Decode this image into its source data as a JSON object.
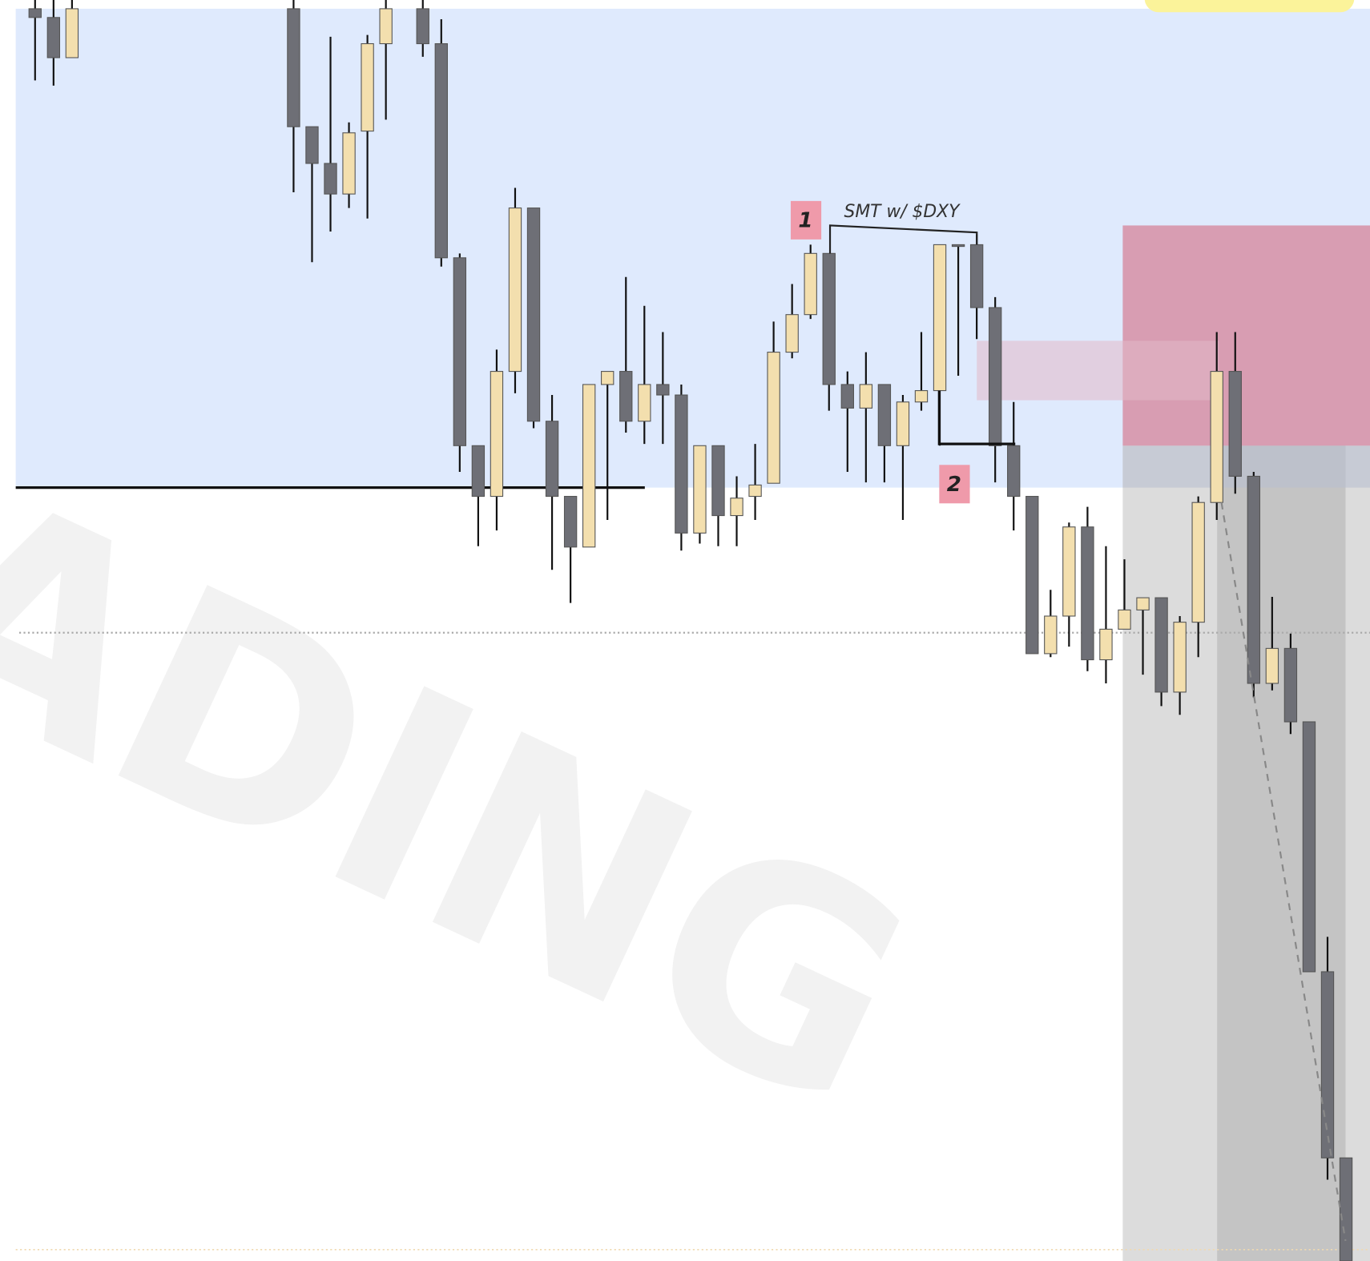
{
  "chart_data": {
    "type": "candlestick",
    "watermark": "ADING",
    "annotations": [
      "1",
      "2",
      "SMT w/ $DXY"
    ],
    "up_color": "#f3dfae",
    "down_color": "#6e6f76",
    "xlim": [
      -1.9,
      72.3
    ],
    "ylim": [
      0,
      1443
    ],
    "x": [
      0,
      1,
      2,
      14,
      15,
      16,
      17,
      18,
      19,
      21,
      22,
      23,
      24,
      25,
      26,
      27,
      28,
      29,
      30,
      31,
      32,
      33,
      34,
      35,
      36,
      37,
      38,
      39,
      40,
      41,
      42,
      43,
      44,
      45,
      46,
      47,
      48,
      49,
      50,
      51,
      52,
      53,
      54,
      55,
      56,
      57,
      58,
      59,
      60,
      61,
      62,
      63,
      64,
      65,
      66,
      67,
      68,
      69,
      70,
      71
    ],
    "open": [
      1433,
      1423,
      1377,
      1433,
      1298,
      1256,
      1221,
      1293,
      1393,
      1433,
      1393,
      1148,
      933,
      875,
      1018,
      1205,
      961,
      875,
      817,
      1003,
      1018,
      961,
      1003,
      991,
      833,
      933,
      853,
      875,
      890,
      1040,
      1083,
      1153,
      1003,
      976,
      1003,
      933,
      983,
      996,
      1163,
      1163,
      1091,
      933,
      875,
      695,
      738,
      840,
      688,
      723,
      745,
      759,
      651,
      731,
      868,
      1018,
      898,
      661,
      701,
      617,
      331,
      118
    ],
    "high": [
      1443,
      1443,
      1443,
      1443,
      1298,
      1401,
      1303,
      1403,
      1443,
      1443,
      1421,
      1153,
      933,
      1043,
      1228,
      1205,
      991,
      875,
      1003,
      1018,
      1126,
      1093,
      1063,
      1003,
      933,
      933,
      898,
      935,
      1075,
      1118,
      1163,
      1153,
      1018,
      1040,
      1003,
      991,
      1063,
      1163,
      1163,
      1175,
      1103,
      983,
      875,
      768,
      845,
      863,
      818,
      803,
      759,
      759,
      738,
      875,
      1063,
      1063,
      903,
      760,
      718,
      617,
      371,
      118
    ],
    "low": [
      1351,
      1345,
      1377,
      1223,
      1143,
      1178,
      1205,
      1193,
      1306,
      1378,
      1138,
      903,
      818,
      836,
      993,
      953,
      791,
      753,
      817,
      848,
      948,
      935,
      935,
      813,
      821,
      818,
      818,
      848,
      890,
      1033,
      1078,
      973,
      903,
      891,
      891,
      848,
      973,
      933,
      1013,
      1055,
      891,
      836,
      695,
      691,
      703,
      675,
      661,
      723,
      671,
      635,
      625,
      691,
      848,
      878,
      645,
      653,
      603,
      331,
      93,
      0
    ],
    "close": [
      1423,
      1377,
      1433,
      1298,
      1256,
      1221,
      1291,
      1393,
      1433,
      1393,
      1148,
      933,
      875,
      1018,
      1205,
      961,
      875,
      817,
      1003,
      1018,
      961,
      1003,
      991,
      833,
      933,
      853,
      873,
      888,
      1040,
      1083,
      1153,
      1003,
      976,
      1003,
      933,
      983,
      996,
      1163,
      1161,
      1091,
      933,
      875,
      695,
      738,
      840,
      688,
      723,
      745,
      759,
      651,
      731,
      868,
      1018,
      898,
      661,
      701,
      617,
      331,
      118,
      0
    ]
  }
}
